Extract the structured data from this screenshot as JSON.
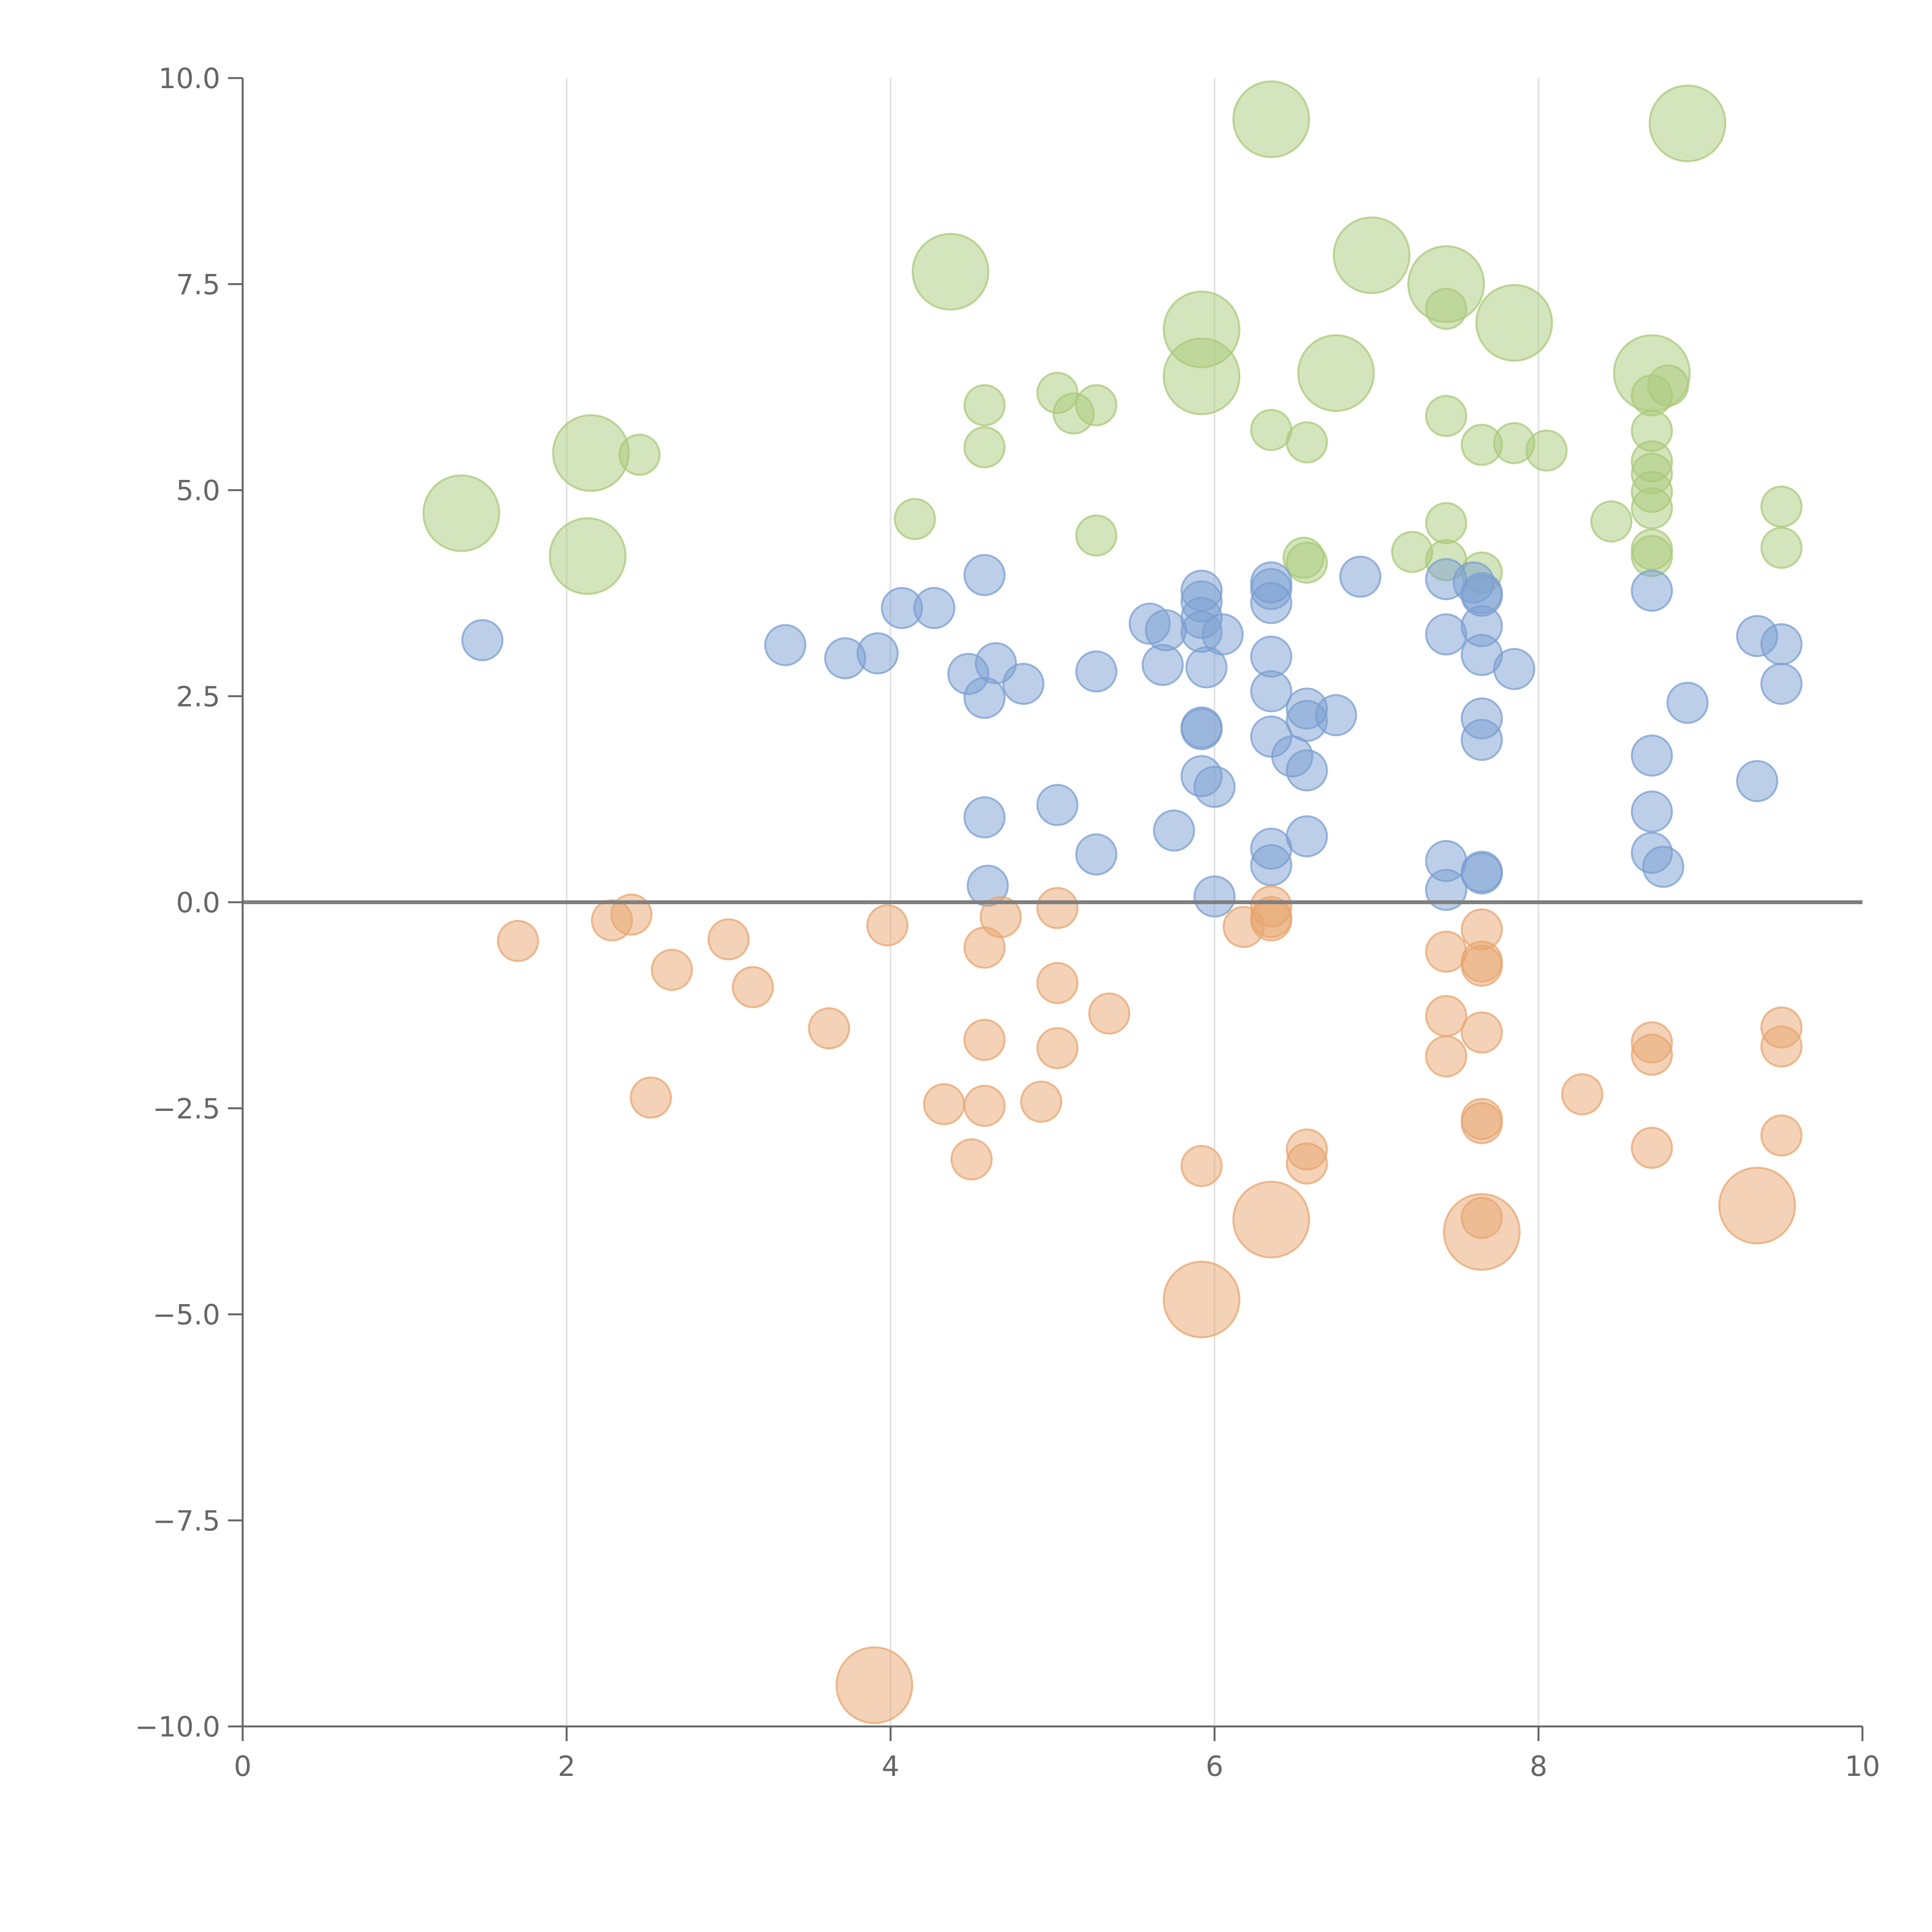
{
  "chart_data": {
    "type": "scatter",
    "title": "",
    "xlabel": "",
    "ylabel": "",
    "xlim": [
      0,
      10
    ],
    "ylim": [
      -10,
      10
    ],
    "x_ticks": [
      0,
      2,
      4,
      6,
      8,
      10
    ],
    "y_ticks": [
      -10,
      -7.5,
      -5,
      -2.5,
      0,
      2.5,
      5,
      7.5,
      10
    ],
    "x_tick_labels": [
      "0",
      "2",
      "4",
      "6",
      "8",
      "10"
    ],
    "y_tick_labels": [
      "−10.0",
      "−7.5",
      "−5.0",
      "−2.5",
      "0.0",
      "2.5",
      "5.0",
      "7.5",
      "10.0"
    ],
    "grid": "vertical",
    "reference_line_y": 0,
    "size_scale": {
      "small": 1,
      "large": 2
    },
    "series": [
      {
        "name": "green",
        "color": "#a9c97a",
        "points": [
          {
            "x": 6.35,
            "y": 9.5,
            "s": 2
          },
          {
            "x": 8.92,
            "y": 9.45,
            "s": 2
          },
          {
            "x": 4.37,
            "y": 7.65,
            "s": 2
          },
          {
            "x": 6.97,
            "y": 7.85,
            "s": 2
          },
          {
            "x": 7.43,
            "y": 7.5,
            "s": 2
          },
          {
            "x": 7.43,
            "y": 7.2,
            "s": 1
          },
          {
            "x": 5.92,
            "y": 6.95,
            "s": 2
          },
          {
            "x": 7.85,
            "y": 7.03,
            "s": 2
          },
          {
            "x": 5.92,
            "y": 6.38,
            "s": 2
          },
          {
            "x": 6.75,
            "y": 6.42,
            "s": 2
          },
          {
            "x": 8.7,
            "y": 6.42,
            "s": 2
          },
          {
            "x": 8.8,
            "y": 6.27,
            "s": 1
          },
          {
            "x": 8.7,
            "y": 6.15,
            "s": 1
          },
          {
            "x": 5.03,
            "y": 6.18,
            "s": 1
          },
          {
            "x": 5.27,
            "y": 6.03,
            "s": 1
          },
          {
            "x": 5.13,
            "y": 5.93,
            "s": 1
          },
          {
            "x": 4.58,
            "y": 6.03,
            "s": 1
          },
          {
            "x": 4.58,
            "y": 5.52,
            "s": 1
          },
          {
            "x": 7.43,
            "y": 5.9,
            "s": 1
          },
          {
            "x": 6.35,
            "y": 5.73,
            "s": 1
          },
          {
            "x": 6.57,
            "y": 5.58,
            "s": 1
          },
          {
            "x": 7.65,
            "y": 5.55,
            "s": 1
          },
          {
            "x": 7.85,
            "y": 5.57,
            "s": 1
          },
          {
            "x": 8.05,
            "y": 5.48,
            "s": 1
          },
          {
            "x": 8.7,
            "y": 5.72,
            "s": 1
          },
          {
            "x": 8.7,
            "y": 5.35,
            "s": 1
          },
          {
            "x": 8.7,
            "y": 5.2,
            "s": 1
          },
          {
            "x": 8.7,
            "y": 4.98,
            "s": 1
          },
          {
            "x": 8.7,
            "y": 4.78,
            "s": 1
          },
          {
            "x": 8.7,
            "y": 4.28,
            "s": 1
          },
          {
            "x": 8.7,
            "y": 4.2,
            "s": 1
          },
          {
            "x": 2.15,
            "y": 5.45,
            "s": 2
          },
          {
            "x": 2.45,
            "y": 5.43,
            "s": 1
          },
          {
            "x": 1.35,
            "y": 4.72,
            "s": 2
          },
          {
            "x": 2.13,
            "y": 4.2,
            "s": 2
          },
          {
            "x": 4.15,
            "y": 4.65,
            "s": 1
          },
          {
            "x": 5.27,
            "y": 4.45,
            "s": 1
          },
          {
            "x": 6.55,
            "y": 4.18,
            "s": 1
          },
          {
            "x": 6.57,
            "y": 4.12,
            "s": 1
          },
          {
            "x": 7.22,
            "y": 4.25,
            "s": 1
          },
          {
            "x": 7.43,
            "y": 4.6,
            "s": 1
          },
          {
            "x": 7.43,
            "y": 4.15,
            "s": 1
          },
          {
            "x": 7.65,
            "y": 4.0,
            "s": 1
          },
          {
            "x": 8.45,
            "y": 4.62,
            "s": 1
          },
          {
            "x": 9.5,
            "y": 4.8,
            "s": 1
          },
          {
            "x": 9.5,
            "y": 4.3,
            "s": 1
          }
        ]
      },
      {
        "name": "blue",
        "color": "#7b9fd1",
        "points": [
          {
            "x": 1.48,
            "y": 3.18,
            "s": 1
          },
          {
            "x": 3.35,
            "y": 3.12,
            "s": 1
          },
          {
            "x": 3.72,
            "y": 2.96,
            "s": 1
          },
          {
            "x": 3.92,
            "y": 3.02,
            "s": 1
          },
          {
            "x": 4.07,
            "y": 3.57,
            "s": 1
          },
          {
            "x": 4.27,
            "y": 3.57,
            "s": 1
          },
          {
            "x": 4.58,
            "y": 3.97,
            "s": 1
          },
          {
            "x": 4.48,
            "y": 2.77,
            "s": 1
          },
          {
            "x": 4.65,
            "y": 2.9,
            "s": 1
          },
          {
            "x": 4.58,
            "y": 2.48,
            "s": 1
          },
          {
            "x": 4.82,
            "y": 2.65,
            "s": 1
          },
          {
            "x": 5.27,
            "y": 2.8,
            "s": 1
          },
          {
            "x": 5.6,
            "y": 3.38,
            "s": 1
          },
          {
            "x": 5.7,
            "y": 3.3,
            "s": 1
          },
          {
            "x": 5.92,
            "y": 3.78,
            "s": 1
          },
          {
            "x": 5.92,
            "y": 3.65,
            "s": 1
          },
          {
            "x": 5.92,
            "y": 3.45,
            "s": 1
          },
          {
            "x": 5.92,
            "y": 3.28,
            "s": 1
          },
          {
            "x": 6.05,
            "y": 3.25,
            "s": 1
          },
          {
            "x": 5.68,
            "y": 2.88,
            "s": 1
          },
          {
            "x": 5.95,
            "y": 2.85,
            "s": 1
          },
          {
            "x": 5.92,
            "y": 2.12,
            "s": 1
          },
          {
            "x": 5.92,
            "y": 2.1,
            "s": 1
          },
          {
            "x": 5.92,
            "y": 1.53,
            "s": 1
          },
          {
            "x": 6.0,
            "y": 1.4,
            "s": 1
          },
          {
            "x": 5.75,
            "y": 0.87,
            "s": 1
          },
          {
            "x": 6.0,
            "y": 0.07,
            "s": 1
          },
          {
            "x": 6.35,
            "y": 3.88,
            "s": 1
          },
          {
            "x": 6.35,
            "y": 3.8,
            "s": 1
          },
          {
            "x": 6.35,
            "y": 3.63,
            "s": 1
          },
          {
            "x": 6.35,
            "y": 2.98,
            "s": 1
          },
          {
            "x": 6.35,
            "y": 2.56,
            "s": 1
          },
          {
            "x": 6.57,
            "y": 2.35,
            "s": 1
          },
          {
            "x": 6.57,
            "y": 2.2,
            "s": 1
          },
          {
            "x": 6.75,
            "y": 2.27,
            "s": 1
          },
          {
            "x": 6.35,
            "y": 2.01,
            "s": 1
          },
          {
            "x": 6.48,
            "y": 1.77,
            "s": 1
          },
          {
            "x": 6.57,
            "y": 1.6,
            "s": 1
          },
          {
            "x": 6.35,
            "y": 0.65,
            "s": 1
          },
          {
            "x": 6.35,
            "y": 0.45,
            "s": 1
          },
          {
            "x": 6.57,
            "y": 0.8,
            "s": 1
          },
          {
            "x": 6.9,
            "y": 3.95,
            "s": 1
          },
          {
            "x": 4.58,
            "y": 1.03,
            "s": 1
          },
          {
            "x": 5.03,
            "y": 1.18,
            "s": 1
          },
          {
            "x": 5.27,
            "y": 0.58,
            "s": 1
          },
          {
            "x": 4.6,
            "y": 0.2,
            "s": 1
          },
          {
            "x": 7.43,
            "y": 3.92,
            "s": 1
          },
          {
            "x": 7.43,
            "y": 3.25,
            "s": 1
          },
          {
            "x": 7.6,
            "y": 3.88,
            "s": 1
          },
          {
            "x": 7.65,
            "y": 3.75,
            "s": 1
          },
          {
            "x": 7.65,
            "y": 3.72,
            "s": 1
          },
          {
            "x": 7.65,
            "y": 3.35,
            "s": 1
          },
          {
            "x": 7.65,
            "y": 3.0,
            "s": 1
          },
          {
            "x": 7.85,
            "y": 2.83,
            "s": 1
          },
          {
            "x": 7.65,
            "y": 2.23,
            "s": 1
          },
          {
            "x": 7.65,
            "y": 1.97,
            "s": 1
          },
          {
            "x": 7.43,
            "y": 0.5,
            "s": 1
          },
          {
            "x": 7.43,
            "y": 0.15,
            "s": 1
          },
          {
            "x": 7.65,
            "y": 0.35,
            "s": 1
          },
          {
            "x": 7.65,
            "y": 0.37,
            "s": 1
          },
          {
            "x": 8.7,
            "y": 3.78,
            "s": 1
          },
          {
            "x": 8.7,
            "y": 1.78,
            "s": 1
          },
          {
            "x": 8.7,
            "y": 1.1,
            "s": 1
          },
          {
            "x": 8.7,
            "y": 0.6,
            "s": 1
          },
          {
            "x": 8.77,
            "y": 0.43,
            "s": 1
          },
          {
            "x": 8.92,
            "y": 2.42,
            "s": 1
          },
          {
            "x": 9.35,
            "y": 3.23,
            "s": 1
          },
          {
            "x": 9.5,
            "y": 3.13,
            "s": 1
          },
          {
            "x": 9.5,
            "y": 2.65,
            "s": 1
          },
          {
            "x": 9.35,
            "y": 1.47,
            "s": 1
          }
        ]
      },
      {
        "name": "orange",
        "color": "#e8a570",
        "points": [
          {
            "x": 1.7,
            "y": -0.47,
            "s": 1
          },
          {
            "x": 2.28,
            "y": -0.22,
            "s": 1
          },
          {
            "x": 2.4,
            "y": -0.15,
            "s": 1
          },
          {
            "x": 2.65,
            "y": -0.82,
            "s": 1
          },
          {
            "x": 3.0,
            "y": -0.45,
            "s": 1
          },
          {
            "x": 3.15,
            "y": -1.03,
            "s": 1
          },
          {
            "x": 2.52,
            "y": -2.37,
            "s": 1
          },
          {
            "x": 3.62,
            "y": -1.53,
            "s": 1
          },
          {
            "x": 3.98,
            "y": -0.28,
            "s": 1
          },
          {
            "x": 4.58,
            "y": -0.55,
            "s": 1
          },
          {
            "x": 4.68,
            "y": -0.18,
            "s": 1
          },
          {
            "x": 5.03,
            "y": -0.07,
            "s": 1
          },
          {
            "x": 5.03,
            "y": -0.98,
            "s": 1
          },
          {
            "x": 5.35,
            "y": -1.35,
            "s": 1
          },
          {
            "x": 4.58,
            "y": -1.67,
            "s": 1
          },
          {
            "x": 5.03,
            "y": -1.77,
            "s": 1
          },
          {
            "x": 4.33,
            "y": -2.45,
            "s": 1
          },
          {
            "x": 4.58,
            "y": -2.47,
            "s": 1
          },
          {
            "x": 4.93,
            "y": -2.42,
            "s": 1
          },
          {
            "x": 4.5,
            "y": -3.12,
            "s": 1
          },
          {
            "x": 5.92,
            "y": -3.2,
            "s": 1
          },
          {
            "x": 6.18,
            "y": -0.3,
            "s": 1
          },
          {
            "x": 6.35,
            "y": -0.05,
            "s": 1
          },
          {
            "x": 6.35,
            "y": -0.18,
            "s": 1
          },
          {
            "x": 6.35,
            "y": -0.22,
            "s": 1
          },
          {
            "x": 6.57,
            "y": -3.0,
            "s": 1
          },
          {
            "x": 6.57,
            "y": -3.17,
            "s": 1
          },
          {
            "x": 3.9,
            "y": -9.5,
            "s": 2
          },
          {
            "x": 5.92,
            "y": -4.82,
            "s": 2
          },
          {
            "x": 6.35,
            "y": -3.85,
            "s": 2
          },
          {
            "x": 7.65,
            "y": -4.0,
            "s": 2
          },
          {
            "x": 7.65,
            "y": -3.83,
            "s": 1
          },
          {
            "x": 9.35,
            "y": -3.68,
            "s": 2
          },
          {
            "x": 7.43,
            "y": -0.6,
            "s": 1
          },
          {
            "x": 7.43,
            "y": -1.38,
            "s": 1
          },
          {
            "x": 7.43,
            "y": -1.87,
            "s": 1
          },
          {
            "x": 7.65,
            "y": -0.33,
            "s": 1
          },
          {
            "x": 7.65,
            "y": -0.72,
            "s": 1
          },
          {
            "x": 7.65,
            "y": -0.77,
            "s": 1
          },
          {
            "x": 7.65,
            "y": -1.58,
            "s": 1
          },
          {
            "x": 7.65,
            "y": -2.63,
            "s": 1
          },
          {
            "x": 7.65,
            "y": -2.68,
            "s": 1
          },
          {
            "x": 8.27,
            "y": -2.33,
            "s": 1
          },
          {
            "x": 8.7,
            "y": -1.7,
            "s": 1
          },
          {
            "x": 8.7,
            "y": -1.85,
            "s": 1
          },
          {
            "x": 8.7,
            "y": -2.98,
            "s": 1
          },
          {
            "x": 9.5,
            "y": -1.52,
            "s": 1
          },
          {
            "x": 9.5,
            "y": -1.75,
            "s": 1
          },
          {
            "x": 9.5,
            "y": -2.83,
            "s": 1
          }
        ]
      }
    ]
  }
}
